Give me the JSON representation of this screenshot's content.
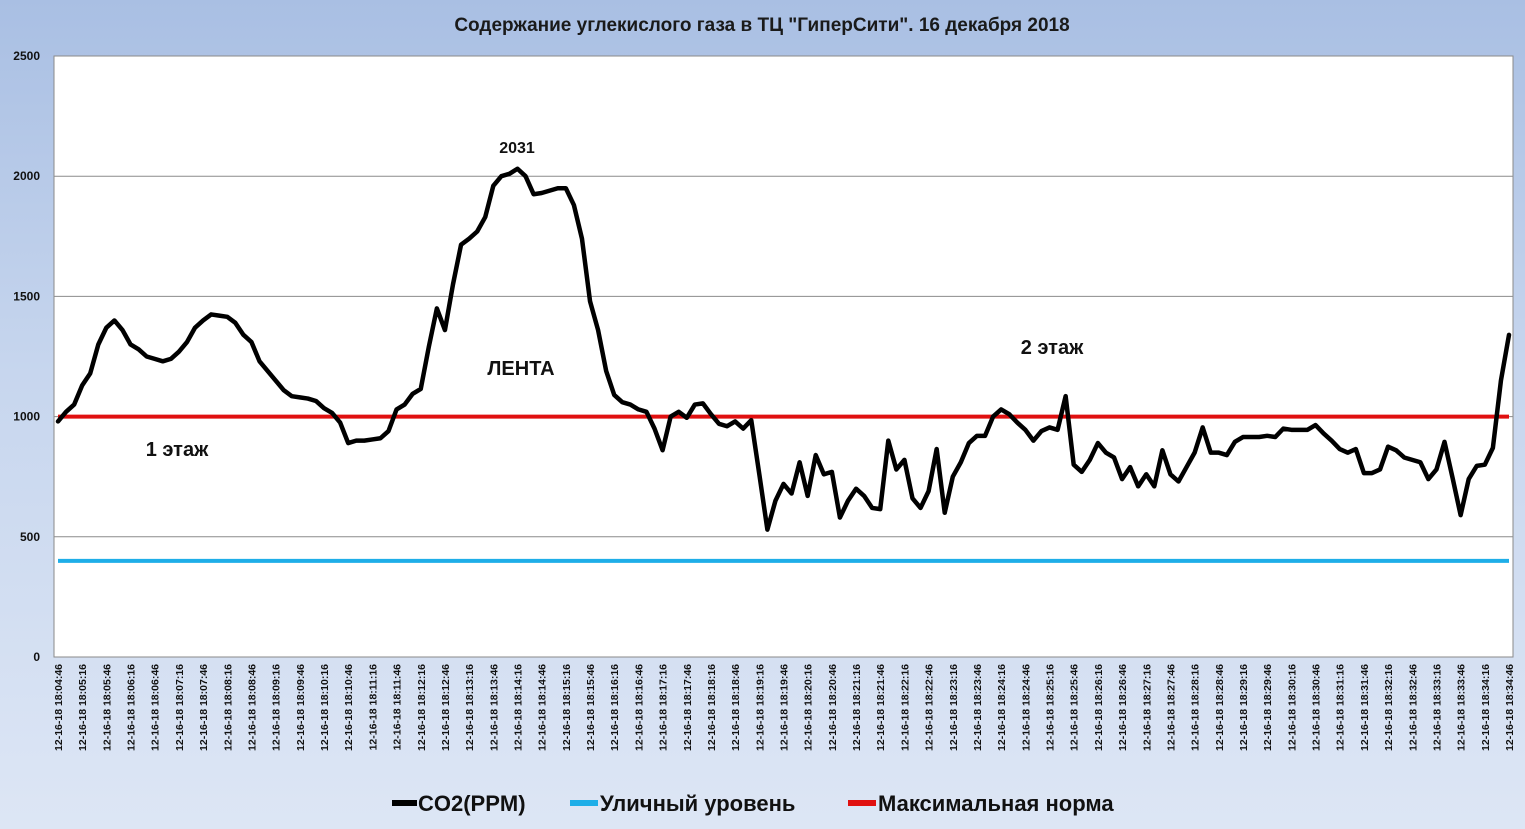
{
  "chart_data": {
    "type": "line",
    "title": "Содержание углекислого газа в ТЦ \"ГиперСити\". 16 декабря 2018",
    "xlabel": "",
    "ylabel": "",
    "ylim": [
      0,
      2500
    ],
    "yticks": [
      "0",
      "500",
      "1000",
      "1500",
      "2000",
      "2500"
    ],
    "grid": true,
    "legend_position": "bottom",
    "x_tick_labels": [
      "12-16-18 18:04:46",
      "12-16-18 18:05:16",
      "12-16-18 18:05:46",
      "12-16-18 18:06:16",
      "12-16-18 18:06:46",
      "12-16-18 18:07:16",
      "12-16-18 18:07:46",
      "12-16-18 18:08:16",
      "12-16-18 18:08:46",
      "12-16-18 18:09:16",
      "12-16-18 18:09:46",
      "12-16-18 18:10:16",
      "12-16-18 18:10:46",
      "12-16-18 18:11:16",
      "12-16-18 18:11:46",
      "12-16-18 18:12:16",
      "12-16-18 18:12:46",
      "12-16-18 18:13:16",
      "12-16-18 18:13:46",
      "12-16-18 18:14:16",
      "12-16-18 18:14:46",
      "12-16-18 18:15:16",
      "12-16-18 18:15:46",
      "12-16-18 18:16:16",
      "12-16-18 18:16:46",
      "12-16-18 18:17:16",
      "12-16-18 18:17:46",
      "12-16-18 18:18:16",
      "12-16-18 18:18:46",
      "12-16-18 18:19:16",
      "12-16-18 18:19:46",
      "12-16-18 18:20:16",
      "12-16-18 18:20:46",
      "12-16-18 18:21:16",
      "12-16-18 18:21:46",
      "12-16-18 18:22:16",
      "12-16-18 18:22:46",
      "12-16-18 18:23:16",
      "12-16-18 18:23:46",
      "12-16-18 18:24:16",
      "12-16-18 18:24:46",
      "12-16-18 18:25:16",
      "12-16-18 18:25:46",
      "12-16-18 18:26:16",
      "12-16-18 18:26:46",
      "12-16-18 18:27:16",
      "12-16-18 18:27:46",
      "12-16-18 18:28:16",
      "12-16-18 18:28:46",
      "12-16-18 18:29:16",
      "12-16-18 18:29:46",
      "12-16-18 18:30:16",
      "12-16-18 18:30:46",
      "12-16-18 18:31:16",
      "12-16-18 18:31:46",
      "12-16-18 18:32:16",
      "12-16-18 18:32:46",
      "12-16-18 18:33:16",
      "12-16-18 18:33:46",
      "12-16-18 18:34:16",
      "12-16-18 18:34:46"
    ],
    "series": [
      {
        "name": "CO2(PPM)",
        "color": "#000000",
        "values": [
          980,
          1020,
          1050,
          1130,
          1180,
          1300,
          1370,
          1400,
          1360,
          1300,
          1280,
          1250,
          1240,
          1230,
          1240,
          1270,
          1310,
          1370,
          1400,
          1425,
          1420,
          1415,
          1390,
          1340,
          1310,
          1230,
          1190,
          1150,
          1110,
          1085,
          1080,
          1075,
          1065,
          1035,
          1015,
          975,
          890,
          900,
          900,
          905,
          910,
          940,
          1030,
          1050,
          1095,
          1115,
          1290,
          1450,
          1360,
          1550,
          1715,
          1740,
          1770,
          1830,
          1960,
          2000,
          2010,
          2031,
          2000,
          1925,
          1930,
          1940,
          1950,
          1950,
          1880,
          1740,
          1480,
          1360,
          1190,
          1090,
          1060,
          1050,
          1030,
          1020,
          950,
          860,
          1000,
          1020,
          995,
          1050,
          1055,
          1010,
          970,
          960,
          980,
          950,
          985,
          760,
          530,
          650,
          720,
          680,
          810,
          670,
          840,
          760,
          770,
          580,
          650,
          700,
          670,
          620,
          615,
          900,
          780,
          820,
          660,
          620,
          690,
          865,
          600,
          750,
          810,
          890,
          920,
          920,
          1000,
          1030,
          1010,
          975,
          945,
          900,
          940,
          955,
          945,
          1085,
          800,
          770,
          820,
          890,
          850,
          830,
          740,
          790,
          710,
          760,
          710,
          860,
          760,
          730,
          790,
          850,
          955,
          850,
          850,
          840,
          895,
          915,
          915,
          915,
          920,
          915,
          950,
          945,
          945,
          945,
          965,
          930,
          900,
          865,
          850,
          865,
          765,
          765,
          780,
          875,
          860,
          830,
          820,
          810,
          740,
          780,
          895,
          745,
          590,
          740,
          795,
          800,
          870,
          1150,
          1340
        ]
      },
      {
        "name": "Уличный уровень",
        "color": "#1eaee8",
        "constant": 400
      },
      {
        "name": "Максимальная норма",
        "color": "#e01010",
        "constant": 1000
      }
    ],
    "annotations": [
      {
        "text": "2031"
      },
      {
        "text": "ЛЕНТА"
      },
      {
        "text": "1 этаж"
      },
      {
        "text": "2 этаж"
      }
    ]
  }
}
